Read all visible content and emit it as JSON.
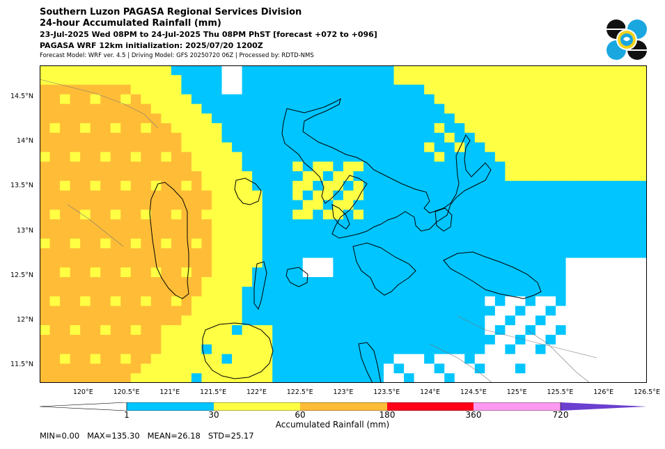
{
  "header": {
    "title_line1": "Southern Luzon PAGASA Regional Services Division",
    "title_line2": "24-hour Accumulated Rainfall (mm)",
    "period": "23-Jul-2025 Wed 08PM to 24-Jul-2025 Thu 08PM PhST [forecast +072 to +096]",
    "init": "PAGASA WRF 12km initialization: 2025/07/20 1200Z",
    "model": "Forecast Model: WRF ver. 4.5 | Driving Model: GFS 20250720 06Z | Processed by: RDTD-NMS"
  },
  "logo": {
    "icon": "pagasa-logo-icon",
    "colors": [
      "#111111",
      "#1aa7e0",
      "#ffffff",
      "#f3d21c"
    ]
  },
  "map": {
    "lon_range": [
      119.5,
      126.5
    ],
    "lat_range": [
      11.3,
      14.85
    ],
    "lat_ticks": [
      "14.5°N",
      "14°N",
      "13.5°N",
      "13°N",
      "12.5°N",
      "12°N",
      "11.5°N"
    ],
    "lat_values": [
      14.5,
      14.0,
      13.5,
      13.0,
      12.5,
      12.0,
      11.5
    ],
    "lon_ticks": [
      "120°E",
      "120.5°E",
      "121°E",
      "121.5°E",
      "122°E",
      "122.5°E",
      "123°E",
      "123.5°E",
      "124°E",
      "124.5°E",
      "125°E",
      "125.5°E",
      "126°E",
      "126.5°E"
    ],
    "lon_values": [
      120.0,
      120.5,
      121.0,
      121.5,
      122.0,
      122.5,
      123.0,
      123.5,
      124.0,
      124.5,
      125.0,
      125.5,
      126.0,
      126.5
    ],
    "rain_field": {
      "regions_mm": [
        {
          "name": "west-sea",
          "level": "60-180"
        },
        {
          "name": "north-central",
          "level": "1-30"
        },
        {
          "name": "east-sea",
          "level": "30-60"
        },
        {
          "name": "southeast",
          "level": "0-1"
        }
      ]
    }
  },
  "colorbar": {
    "title": "Accumulated Rainfall (mm)",
    "labels": [
      "1",
      "30",
      "60",
      "180",
      "360",
      "720"
    ],
    "colors": [
      "#00c5ff",
      "#ffff44",
      "#ffbd37",
      "#ff0019",
      "#ff9af0",
      "#6b3fcf"
    ],
    "under_color": "#ffffff"
  },
  "stats": {
    "text": "MIN=0.00   MAX=135.30   MEAN=26.18   STD=25.17"
  }
}
